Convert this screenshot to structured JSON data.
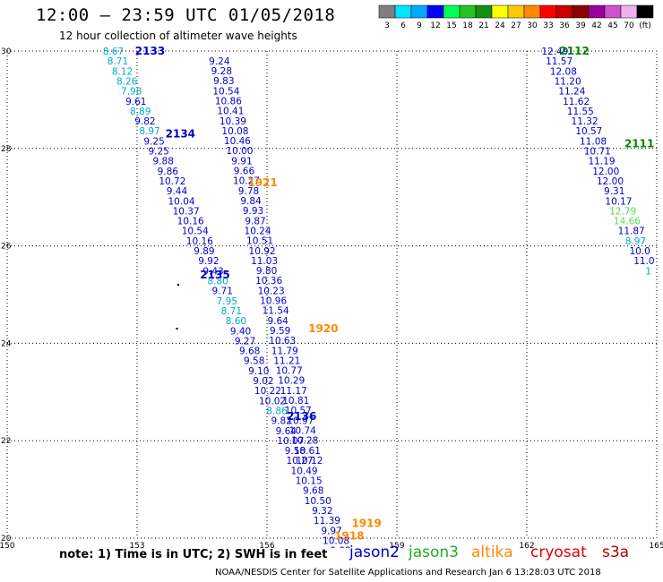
{
  "header": {
    "title": "12:00 – 23:59 UTC 01/05/2018",
    "subtitle": "12 hour collection of altimeter wave heights"
  },
  "colorbar": {
    "labels": [
      "3",
      "6",
      "9",
      "12",
      "15",
      "18",
      "21",
      "24",
      "27",
      "30",
      "33",
      "36",
      "39",
      "42",
      "45",
      "70",
      "(ft)"
    ],
    "colors": [
      "#7f7f7f",
      "#00e5ff",
      "#00aaff",
      "#0000ff",
      "#00ff55",
      "#22c322",
      "#139013",
      "#ffff00",
      "#ffc800",
      "#ff8800",
      "#ff0000",
      "#c80000",
      "#8c0000",
      "#9a009a",
      "#d050d0",
      "#f0b0f0",
      "#000000"
    ]
  },
  "footer": {
    "note": "note:  1) Time is in UTC;  2) SWH is in feet",
    "credit": "NOAA/NESDIS Center for Satellite Applications and Research    Jan  6 13:28:03 UTC 2018",
    "satellites": [
      {
        "name": "jason2",
        "color": "#0000cc"
      },
      {
        "name": "jason3",
        "color": "#22aa22"
      },
      {
        "name": "altika",
        "color": "#ff8800"
      },
      {
        "name": "cryosat",
        "color": "#dd0000"
      },
      {
        "name": "s3a",
        "color": "#b00000"
      }
    ]
  },
  "chart_data": {
    "type": "scatter",
    "xlim": [
      150,
      165
    ],
    "ylim": [
      20,
      30
    ],
    "x_ticks": [
      "150",
      "153",
      "156",
      "159",
      "162",
      "165"
    ],
    "y_ticks": [
      "30",
      "28",
      "26",
      "24",
      "22",
      "20"
    ],
    "grid": true,
    "colors": {
      "d9": "#00aacc",
      "d12": "#0000cc",
      "d15": "#55dd55",
      "dark_green": "#008800",
      "orange": "#ff8800"
    },
    "tracks": [
      {
        "label": "2133",
        "label_x": 153.3,
        "label_y": 30.0,
        "label_color": "#0000cc",
        "x0": 152.45,
        "y0": 30.0,
        "dx": 0.105,
        "dy": 0.205,
        "values": [
          "8.67",
          "8.71",
          "8.12",
          "8.26",
          "7.98",
          "9.61",
          "8.89",
          "9.82",
          "8.97",
          "9.25",
          "9.25",
          "9.88",
          "9.86",
          "10.72",
          "9.44",
          "10.04",
          "10.37",
          "10.16",
          "10.54",
          "10.16",
          "9.89",
          "9.92",
          "9.43",
          "8.80",
          "9.71",
          "7.95",
          "8.71",
          "8.60",
          "9.40",
          "9.27",
          "9.68",
          "9.58",
          "9.10",
          "9.02",
          "10.22",
          "10.02",
          "8.86",
          "9.82",
          "9.64",
          "10.07",
          "9.58",
          "10.27",
          "10.49",
          "10.15",
          "9.68",
          "10.50",
          "9.32",
          "11.39",
          "9.97",
          "10.08",
          "9.92",
          "10.89",
          "9.62"
        ]
      },
      {
        "label": "2134",
        "label_x": 154.0,
        "label_y": 28.3,
        "label_color": "#0000cc",
        "x0": 154.9,
        "y0": 29.8,
        "dx": 0.052,
        "dy": 0.205,
        "values": [
          "9.24",
          "9.28",
          "9.83",
          "10.54",
          "10.86",
          "10.41",
          "10.39",
          "10.08",
          "10.46",
          "10.00",
          "9.91",
          "9.66",
          "10.27",
          "9.78",
          "9.84",
          "9.93",
          "9.87",
          "10.24",
          "10.51",
          "10.92",
          "11.03",
          "9.80",
          "10.36",
          "10.23",
          "10.96",
          "11.54",
          "9.64",
          "9.59",
          "10.63",
          "11.79",
          "11.21",
          "10.77",
          "10.29",
          "11.17",
          "10.81",
          "10.57",
          "10.97",
          "10.74",
          "10.28",
          "10.61",
          "10.12"
        ]
      },
      {
        "label": "2112",
        "label_x": 163.1,
        "label_y": 30.0,
        "label_color": "#008800",
        "x0": 162.65,
        "y0": 30.0,
        "dx": 0.098,
        "dy": 0.205,
        "values": [
          "12.49",
          "11.57",
          "12.08",
          "11.20",
          "11.24",
          "11.62",
          "11.55",
          "11.32",
          "10.57",
          "11.08",
          "10.71",
          "11.19",
          "12.00",
          "12.00",
          "9.31",
          "10.17",
          "12.79",
          "14.66",
          "11.87",
          "8.97",
          "10.0",
          "11.0",
          "1"
        ]
      }
    ],
    "pass_labels": [
      {
        "text": "2111",
        "x": 164.6,
        "y": 28.1,
        "color": "#008800"
      },
      {
        "text": "2135",
        "x": 154.8,
        "y": 25.4,
        "color": "#0000cc"
      },
      {
        "text": "2136",
        "x": 156.8,
        "y": 22.5,
        "color": "#0000cc"
      },
      {
        "text": "1921",
        "x": 155.9,
        "y": 27.3,
        "color": "#ff8800"
      },
      {
        "text": "1920",
        "x": 157.3,
        "y": 24.3,
        "color": "#ff8800"
      },
      {
        "text": "1919",
        "x": 158.3,
        "y": 20.3,
        "color": "#ff8800"
      },
      {
        "text": "1918",
        "x": 157.9,
        "y": 20.05,
        "color": "#ff8800"
      }
    ],
    "dots": [
      {
        "x": 153.95,
        "y": 25.2
      },
      {
        "x": 153.92,
        "y": 24.3
      }
    ]
  }
}
